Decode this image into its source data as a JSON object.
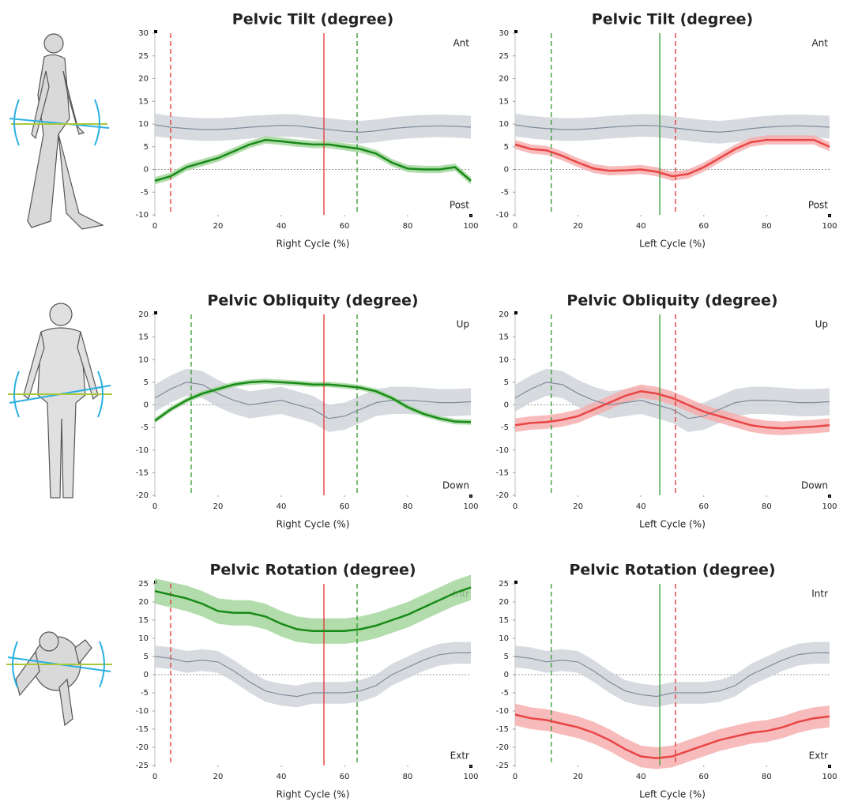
{
  "chart_data": [
    {
      "type": "line",
      "title": "Pelvic Tilt (degree)",
      "x_label": "Right Cycle (%)",
      "annotations": {
        "top": "Ant",
        "bottom": "Post"
      },
      "x": [
        0,
        5,
        10,
        15,
        20,
        25,
        30,
        35,
        40,
        45,
        50,
        55,
        60,
        65,
        70,
        75,
        80,
        85,
        90,
        95,
        100
      ],
      "xlim": [
        0,
        100
      ],
      "xticks": [
        0,
        20,
        40,
        60,
        80,
        100
      ],
      "ylim": [
        -10,
        30
      ],
      "yticks": [
        -10,
        -5,
        0,
        5,
        10,
        15,
        20,
        25,
        30
      ],
      "series": [
        {
          "color": "#7f8c9a",
          "band_color": "#cdd2d8",
          "spread": 2.5,
          "values": [
            9.8,
            9.3,
            9,
            8.8,
            8.8,
            9,
            9.3,
            9.5,
            9.7,
            9.6,
            9.2,
            8.8,
            8.4,
            8.2,
            8.5,
            9,
            9.3,
            9.5,
            9.6,
            9.5,
            9.3
          ]
        },
        {
          "color": "#178a17",
          "band_color": "#9fd397",
          "spread": 0.8,
          "values": [
            -2.5,
            -1.5,
            0.5,
            1.5,
            2.5,
            4,
            5.5,
            6.5,
            6.2,
            5.8,
            5.5,
            5.5,
            5,
            4.5,
            3.5,
            1.5,
            0.2,
            0,
            0,
            0.5,
            -2.5
          ]
        }
      ],
      "markers": [
        {
          "x": 5,
          "color": "#e83030",
          "dashed": true
        },
        {
          "x": 53.5,
          "color": "#e83030",
          "dashed": false
        },
        {
          "x": 64,
          "color": "#2e9a2e",
          "dashed": true
        }
      ]
    },
    {
      "type": "line",
      "title": "Pelvic Tilt (degree)",
      "x_label": "Left Cycle (%)",
      "annotations": {
        "top": "Ant",
        "bottom": "Post"
      },
      "x": [
        0,
        5,
        10,
        15,
        20,
        25,
        30,
        35,
        40,
        45,
        50,
        55,
        60,
        65,
        70,
        75,
        80,
        85,
        90,
        95,
        100
      ],
      "xlim": [
        0,
        100
      ],
      "xticks": [
        0,
        20,
        40,
        60,
        80,
        100
      ],
      "ylim": [
        -10,
        30
      ],
      "yticks": [
        -10,
        -5,
        0,
        5,
        10,
        15,
        20,
        25,
        30
      ],
      "series": [
        {
          "color": "#7f8c9a",
          "band_color": "#cdd2d8",
          "spread": 2.5,
          "values": [
            9.8,
            9.3,
            9,
            8.8,
            8.8,
            9,
            9.3,
            9.5,
            9.7,
            9.6,
            9.2,
            8.8,
            8.4,
            8.2,
            8.5,
            9,
            9.3,
            9.5,
            9.6,
            9.5,
            9.3
          ]
        },
        {
          "color": "#e84545",
          "band_color": "#f6aaaa",
          "spread": 1,
          "values": [
            5.5,
            4.5,
            4.2,
            3,
            1.5,
            0.2,
            -0.3,
            -0.2,
            0,
            -0.5,
            -1.5,
            -1,
            0.5,
            2.5,
            4.5,
            6,
            6.5,
            6.5,
            6.5,
            6.5,
            5
          ]
        }
      ],
      "markers": [
        {
          "x": 11.5,
          "color": "#2e9a2e",
          "dashed": true
        },
        {
          "x": 46,
          "color": "#2e9a2e",
          "dashed": false
        },
        {
          "x": 51,
          "color": "#e83030",
          "dashed": true
        }
      ]
    },
    {
      "type": "line",
      "title": "Pelvic Obliquity (degree)",
      "x_label": "Right Cycle (%)",
      "annotations": {
        "top": "Up",
        "bottom": "Down"
      },
      "x": [
        0,
        5,
        10,
        15,
        20,
        25,
        30,
        35,
        40,
        45,
        50,
        55,
        60,
        65,
        70,
        75,
        80,
        85,
        90,
        95,
        100
      ],
      "xlim": [
        0,
        100
      ],
      "xticks": [
        0,
        20,
        40,
        60,
        80,
        100
      ],
      "ylim": [
        -20,
        20
      ],
      "yticks": [
        -20,
        -15,
        -10,
        -5,
        0,
        5,
        10,
        15,
        20
      ],
      "series": [
        {
          "color": "#7f8c9a",
          "band_color": "#cdd2d8",
          "spread": 3,
          "values": [
            1.5,
            3.5,
            5,
            4.5,
            2.5,
            1,
            0,
            0.5,
            1,
            0,
            -1,
            -3,
            -2.5,
            -1,
            0.5,
            1,
            1,
            0.8,
            0.5,
            0.5,
            0.7
          ]
        },
        {
          "color": "#178a17",
          "band_color": "#9fd397",
          "spread": 0.6,
          "values": [
            -3.5,
            -1,
            1,
            2.5,
            3.5,
            4.5,
            5,
            5.2,
            5,
            4.8,
            4.5,
            4.5,
            4.2,
            3.8,
            3,
            1.5,
            -0.5,
            -2,
            -3,
            -3.7,
            -3.8
          ]
        }
      ],
      "markers": [
        {
          "x": 11.5,
          "color": "#2e9a2e",
          "dashed": true
        },
        {
          "x": 53.5,
          "color": "#e83030",
          "dashed": false
        },
        {
          "x": 64,
          "color": "#2e9a2e",
          "dashed": true
        }
      ]
    },
    {
      "type": "line",
      "title": "Pelvic Obliquity (degree)",
      "x_label": "Left Cycle (%)",
      "annotations": {
        "top": "Up",
        "bottom": "Down"
      },
      "x": [
        0,
        5,
        10,
        15,
        20,
        25,
        30,
        35,
        40,
        45,
        50,
        55,
        60,
        65,
        70,
        75,
        80,
        85,
        90,
        95,
        100
      ],
      "xlim": [
        0,
        100
      ],
      "xticks": [
        0,
        20,
        40,
        60,
        80,
        100
      ],
      "ylim": [
        -20,
        20
      ],
      "yticks": [
        -20,
        -15,
        -10,
        -5,
        0,
        5,
        10,
        15,
        20
      ],
      "series": [
        {
          "color": "#7f8c9a",
          "band_color": "#cdd2d8",
          "spread": 3,
          "values": [
            1.5,
            3.5,
            5,
            4.5,
            2.5,
            1,
            0,
            0.5,
            1,
            0,
            -1,
            -3,
            -2.5,
            -1,
            0.5,
            1,
            1,
            0.8,
            0.5,
            0.5,
            0.7
          ]
        },
        {
          "color": "#e84545",
          "band_color": "#f6aaaa",
          "spread": 1.5,
          "values": [
            -4.5,
            -4,
            -3.8,
            -3.3,
            -2.5,
            -1,
            0.5,
            2,
            3,
            2.5,
            1.5,
            0,
            -1.5,
            -2.5,
            -3.5,
            -4.5,
            -5,
            -5.2,
            -5,
            -4.8,
            -4.5
          ]
        }
      ],
      "markers": [
        {
          "x": 11.5,
          "color": "#2e9a2e",
          "dashed": true
        },
        {
          "x": 46,
          "color": "#2e9a2e",
          "dashed": false
        },
        {
          "x": 51,
          "color": "#e83030",
          "dashed": true
        }
      ]
    },
    {
      "type": "line",
      "title": "Pelvic Rotation (degree)",
      "x_label": "Right Cycle (%)",
      "annotations": {
        "top": "Intr",
        "bottom": "Extr"
      },
      "x": [
        0,
        5,
        10,
        15,
        20,
        25,
        30,
        35,
        40,
        45,
        50,
        55,
        60,
        65,
        70,
        75,
        80,
        85,
        90,
        95,
        100
      ],
      "xlim": [
        0,
        100
      ],
      "xticks": [
        0,
        20,
        40,
        60,
        80,
        100
      ],
      "ylim": [
        -25,
        25
      ],
      "yticks": [
        -25,
        -20,
        -15,
        -10,
        -5,
        0,
        5,
        10,
        15,
        20,
        25
      ],
      "series": [
        {
          "color": "#7f8c9a",
          "band_color": "#cdd2d8",
          "spread": 3,
          "values": [
            5,
            4.5,
            3.5,
            4,
            3.5,
            1,
            -2,
            -4.5,
            -5.5,
            -6,
            -5,
            -5,
            -5,
            -4.5,
            -3,
            0,
            2,
            4,
            5.5,
            6,
            6
          ]
        },
        {
          "color": "#178a17",
          "band_color": "#9fd397",
          "spread": 3.5,
          "values": [
            23,
            22,
            21,
            19.5,
            17.5,
            17,
            17,
            16,
            14,
            12.5,
            12,
            12,
            12,
            12.5,
            13.5,
            15,
            16.5,
            18.5,
            20.5,
            22.5,
            24
          ]
        }
      ],
      "markers": [
        {
          "x": 5,
          "color": "#e83030",
          "dashed": true
        },
        {
          "x": 53.5,
          "color": "#e83030",
          "dashed": false
        },
        {
          "x": 64,
          "color": "#2e9a2e",
          "dashed": true
        }
      ]
    },
    {
      "type": "line",
      "title": "Pelvic Rotation (degree)",
      "x_label": "Left Cycle (%)",
      "annotations": {
        "top": "Intr",
        "bottom": "Extr"
      },
      "x": [
        0,
        5,
        10,
        15,
        20,
        25,
        30,
        35,
        40,
        45,
        50,
        55,
        60,
        65,
        70,
        75,
        80,
        85,
        90,
        95,
        100
      ],
      "xlim": [
        0,
        100
      ],
      "xticks": [
        0,
        20,
        40,
        60,
        80,
        100
      ],
      "ylim": [
        -25,
        25
      ],
      "yticks": [
        -25,
        -20,
        -15,
        -10,
        -5,
        0,
        5,
        10,
        15,
        20,
        25
      ],
      "series": [
        {
          "color": "#7f8c9a",
          "band_color": "#cdd2d8",
          "spread": 3,
          "values": [
            5,
            4.5,
            3.5,
            4,
            3.5,
            1,
            -2,
            -4.5,
            -5.5,
            -6,
            -5,
            -5,
            -5,
            -4.5,
            -3,
            0,
            2,
            4,
            5.5,
            6,
            6
          ]
        },
        {
          "color": "#e84545",
          "band_color": "#f6aaaa",
          "spread": 3,
          "values": [
            -11,
            -12,
            -12.5,
            -13.5,
            -14.5,
            -16,
            -18,
            -20.5,
            -22.5,
            -23,
            -22.5,
            -21,
            -19.5,
            -18,
            -17,
            -16,
            -15.5,
            -14.5,
            -13,
            -12,
            -11.5
          ]
        }
      ],
      "markers": [
        {
          "x": 11.5,
          "color": "#2e9a2e",
          "dashed": true
        },
        {
          "x": 46,
          "color": "#2e9a2e",
          "dashed": false
        },
        {
          "x": 51,
          "color": "#e83030",
          "dashed": true
        }
      ]
    }
  ]
}
